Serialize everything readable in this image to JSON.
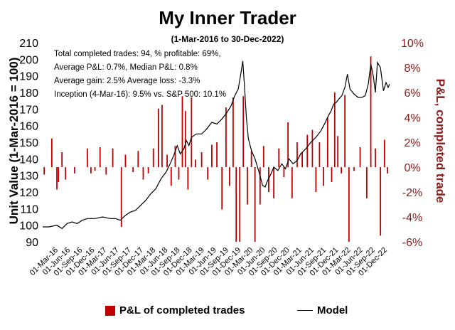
{
  "chart_data": {
    "type": "bar+line",
    "title": "My Inner Trader",
    "subtitle": "(1-Mar-2016 to 30-Dec-2022)",
    "annotations": [
      "Total completed trades: 94, % profitable: 69%,",
      "Average P&L: 0.7%, Median P&L: 0.8%",
      "Average gain: 2.5% Average loss: -3.3%",
      "Inception (4-Mar-16): 9.5% vs. S&P 500: 10.1%"
    ],
    "y_left": {
      "label": "Unit Value (1-Mar-2016 = 100)",
      "min": 90,
      "max": 210,
      "ticks": [
        "90",
        "100",
        "110",
        "120",
        "130",
        "140",
        "150",
        "160",
        "170",
        "180",
        "190",
        "200",
        "210"
      ]
    },
    "y_right": {
      "label": "P&L, completed trade",
      "min": -6,
      "max": 10,
      "ticks": [
        "-6%",
        "-4%",
        "-2%",
        "0%",
        "2%",
        "4%",
        "6%",
        "8%",
        "10%"
      ]
    },
    "x_ticks": [
      "01-Mar-16",
      "01-Jun-16",
      "01-Sep-16",
      "01-Dec-16",
      "01-Mar-17",
      "01-Jun-17",
      "01-Sep-17",
      "01-Dec-17",
      "01-Mar-18",
      "01-Jun-18",
      "01-Sep-18",
      "01-Dec-18",
      "01-Mar-19",
      "01-Jun-19",
      "01-Sep-19",
      "01-Dec-19",
      "01-Mar-20",
      "01-Jun-20",
      "01-Sep-20",
      "01-Dec-20",
      "01-Mar-21",
      "01-Jun-21",
      "01-Sep-21",
      "01-Dec-21",
      "01-Mar-22",
      "01-Jun-22",
      "01-Sep-22",
      "01-Dec-22"
    ],
    "x_range_years": [
      2016.17,
      2023.0
    ],
    "model_series": {
      "name": "Model",
      "color": "#000000",
      "points": [
        [
          2016.17,
          99
        ],
        [
          2016.3,
          99
        ],
        [
          2016.45,
          100
        ],
        [
          2016.55,
          98
        ],
        [
          2016.65,
          101
        ],
        [
          2016.75,
          102
        ],
        [
          2016.85,
          101
        ],
        [
          2016.95,
          103
        ],
        [
          2017.05,
          104
        ],
        [
          2017.2,
          104
        ],
        [
          2017.35,
          105
        ],
        [
          2017.5,
          104
        ],
        [
          2017.6,
          104
        ],
        [
          2017.7,
          103
        ],
        [
          2017.8,
          106
        ],
        [
          2017.9,
          108
        ],
        [
          2018.0,
          109
        ],
        [
          2018.1,
          112
        ],
        [
          2018.2,
          115
        ],
        [
          2018.3,
          119
        ],
        [
          2018.4,
          122
        ],
        [
          2018.5,
          128
        ],
        [
          2018.6,
          132
        ],
        [
          2018.68,
          137
        ],
        [
          2018.75,
          142
        ],
        [
          2018.82,
          148
        ],
        [
          2018.88,
          143
        ],
        [
          2018.95,
          146
        ],
        [
          2019.0,
          151
        ],
        [
          2019.05,
          148
        ],
        [
          2019.1,
          153
        ],
        [
          2019.2,
          155
        ],
        [
          2019.3,
          155
        ],
        [
          2019.4,
          158
        ],
        [
          2019.5,
          162
        ],
        [
          2019.6,
          161
        ],
        [
          2019.7,
          164
        ],
        [
          2019.8,
          168
        ],
        [
          2019.88,
          172
        ],
        [
          2019.95,
          178
        ],
        [
          2020.02,
          182
        ],
        [
          2020.08,
          193
        ],
        [
          2020.11,
          199
        ],
        [
          2020.14,
          185
        ],
        [
          2020.18,
          165
        ],
        [
          2020.22,
          152
        ],
        [
          2020.28,
          145
        ],
        [
          2020.35,
          140
        ],
        [
          2020.42,
          133
        ],
        [
          2020.5,
          124
        ],
        [
          2020.55,
          123
        ],
        [
          2020.6,
          127
        ],
        [
          2020.65,
          130
        ],
        [
          2020.72,
          135
        ],
        [
          2020.8,
          133
        ],
        [
          2020.88,
          137
        ],
        [
          2020.95,
          134
        ],
        [
          2021.02,
          140
        ],
        [
          2021.1,
          137
        ],
        [
          2021.18,
          139
        ],
        [
          2021.25,
          143
        ],
        [
          2021.35,
          146
        ],
        [
          2021.45,
          150
        ],
        [
          2021.55,
          153
        ],
        [
          2021.65,
          157
        ],
        [
          2021.72,
          161
        ],
        [
          2021.78,
          165
        ],
        [
          2021.85,
          169
        ],
        [
          2021.9,
          173
        ],
        [
          2021.95,
          174
        ],
        [
          2022.0,
          176
        ],
        [
          2022.06,
          178
        ],
        [
          2022.12,
          183
        ],
        [
          2022.17,
          191
        ],
        [
          2022.22,
          182
        ],
        [
          2022.3,
          179
        ],
        [
          2022.38,
          177
        ],
        [
          2022.45,
          177
        ],
        [
          2022.52,
          178
        ],
        [
          2022.58,
          185
        ],
        [
          2022.63,
          197
        ],
        [
          2022.68,
          190
        ],
        [
          2022.72,
          180
        ],
        [
          2022.76,
          198
        ],
        [
          2022.82,
          195
        ],
        [
          2022.88,
          181
        ],
        [
          2022.93,
          186
        ],
        [
          2022.97,
          183
        ],
        [
          2023.0,
          185
        ]
      ]
    },
    "bar_series": {
      "name": "P&L of completed trades",
      "color": "#c00000",
      "points": [
        [
          2016.2,
          -0.6
        ],
        [
          2016.35,
          2.3
        ],
        [
          2016.45,
          -1.8
        ],
        [
          2016.48,
          -1.2
        ],
        [
          2016.55,
          1.2
        ],
        [
          2016.62,
          -1.0
        ],
        [
          2016.8,
          -0.5
        ],
        [
          2017.05,
          1.5
        ],
        [
          2017.12,
          -0.5
        ],
        [
          2017.2,
          -0.3
        ],
        [
          2017.3,
          1.6
        ],
        [
          2017.42,
          -0.6
        ],
        [
          2017.55,
          1.5
        ],
        [
          2017.72,
          -4.8
        ],
        [
          2017.8,
          1.0
        ],
        [
          2017.95,
          -0.4
        ],
        [
          2018.05,
          1.3
        ],
        [
          2018.15,
          -1.0
        ],
        [
          2018.25,
          -0.5
        ],
        [
          2018.35,
          1.5
        ],
        [
          2018.45,
          4.7
        ],
        [
          2018.52,
          5.0
        ],
        [
          2018.62,
          1.0
        ],
        [
          2018.7,
          -1.5
        ],
        [
          2018.78,
          1.7
        ],
        [
          2018.85,
          -1.0
        ],
        [
          2018.92,
          5.7
        ],
        [
          2018.98,
          4.5
        ],
        [
          2019.03,
          -1.8
        ],
        [
          2019.1,
          5.6
        ],
        [
          2019.18,
          0.6
        ],
        [
          2019.3,
          1.2
        ],
        [
          2019.42,
          -1.0
        ],
        [
          2019.5,
          1.8
        ],
        [
          2019.6,
          2.0
        ],
        [
          2019.7,
          -3.4
        ],
        [
          2019.78,
          4.8
        ],
        [
          2019.85,
          -1.5
        ],
        [
          2019.92,
          5.6
        ],
        [
          2019.98,
          -6.0
        ],
        [
          2020.05,
          -6.0
        ],
        [
          2020.12,
          5.7
        ],
        [
          2020.2,
          -3.0
        ],
        [
          2020.28,
          1.3
        ],
        [
          2020.35,
          -6.0
        ],
        [
          2020.45,
          -3.0
        ],
        [
          2020.52,
          1.7
        ],
        [
          2020.62,
          -2.0
        ],
        [
          2020.72,
          -2.5
        ],
        [
          2020.82,
          1.5
        ],
        [
          2020.92,
          -0.8
        ],
        [
          2021.0,
          3.6
        ],
        [
          2021.08,
          -2.5
        ],
        [
          2021.18,
          2.0
        ],
        [
          2021.28,
          1.2
        ],
        [
          2021.38,
          2.6
        ],
        [
          2021.48,
          3.0
        ],
        [
          2021.55,
          -2.0
        ],
        [
          2021.62,
          2.0
        ],
        [
          2021.7,
          -1.5
        ],
        [
          2021.78,
          4.0
        ],
        [
          2021.86,
          -1.2
        ],
        [
          2021.92,
          6.0
        ],
        [
          2021.98,
          2.5
        ],
        [
          2022.05,
          -0.5
        ],
        [
          2022.12,
          5.8
        ],
        [
          2022.2,
          -6.0
        ],
        [
          2022.3,
          -0.3
        ],
        [
          2022.42,
          1.6
        ],
        [
          2022.55,
          -2.5
        ],
        [
          2022.63,
          8.9
        ],
        [
          2022.72,
          1.5
        ],
        [
          2022.82,
          -5.5
        ],
        [
          2022.9,
          2.2
        ],
        [
          2022.96,
          -0.5
        ]
      ]
    }
  },
  "legend": {
    "bars_label": "P&L of completed trades",
    "line_label": "Model"
  }
}
